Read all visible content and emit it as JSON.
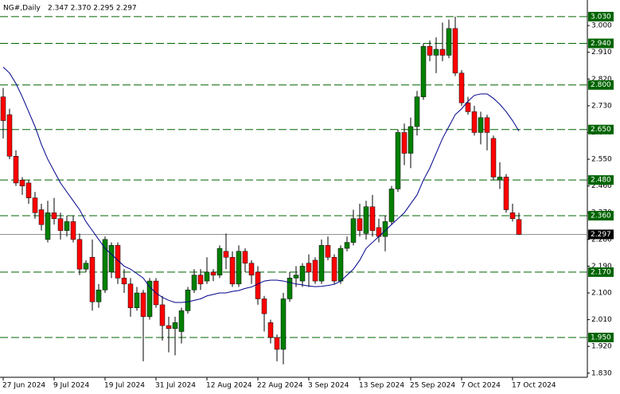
{
  "chart_data": {
    "type": "candlestick",
    "title": "NG#,Daily",
    "ohlc_text": "2.347 2.370 2.295 2.297",
    "categories": [
      "27 Jun 2024",
      null,
      null,
      null,
      null,
      null,
      null,
      null,
      "9 Jul 2024",
      null,
      null,
      null,
      null,
      null,
      null,
      null,
      "19 Jul 2024",
      null,
      null,
      null,
      null,
      null,
      null,
      null,
      "31 Jul 2024",
      null,
      null,
      null,
      null,
      null,
      null,
      null,
      "12 Aug 2024",
      null,
      null,
      null,
      null,
      null,
      null,
      null,
      "22 Aug 2024",
      null,
      null,
      null,
      null,
      null,
      null,
      null,
      "3 Sep 2024",
      null,
      null,
      null,
      null,
      null,
      null,
      null,
      "13 Sep 2024",
      null,
      null,
      null,
      null,
      null,
      null,
      null,
      "25 Sep 2024",
      null,
      null,
      null,
      null,
      null,
      null,
      null,
      "7 Oct 2024",
      null,
      null,
      null,
      null,
      null,
      null,
      null,
      "17 Oct 2024",
      null
    ],
    "open": [
      2.76,
      2.7,
      2.56,
      2.48,
      2.47,
      2.42,
      2.38,
      2.28,
      2.37,
      2.35,
      2.31,
      2.34,
      2.28,
      2.18,
      2.22,
      2.07,
      2.11,
      2.17,
      2.26,
      2.15,
      2.13,
      2.05,
      2.1,
      2.02,
      2.14,
      2.06,
      1.99,
      1.98,
      1.97,
      2.04,
      2.11,
      2.16,
      2.14,
      2.17,
      2.16,
      2.24,
      2.22,
      2.13,
      2.24,
      2.2,
      2.17,
      2.08,
      2.0,
      1.95,
      1.91,
      2.08,
      2.15,
      2.14,
      2.2,
      2.21,
      2.14,
      2.26,
      2.22,
      2.14,
      2.25,
      2.27,
      2.35,
      2.3,
      2.39,
      2.32,
      2.29,
      2.34,
      2.45,
      2.64,
      2.57,
      2.66,
      2.76,
      2.93,
      2.9,
      2.92,
      2.9,
      2.99,
      2.84,
      2.74,
      2.71,
      2.64,
      2.69,
      2.62,
      2.48,
      2.49,
      2.37,
      2.347
    ],
    "high": [
      2.79,
      2.72,
      2.58,
      2.49,
      2.48,
      2.44,
      2.4,
      2.41,
      2.42,
      2.37,
      2.36,
      2.36,
      2.3,
      2.21,
      2.28,
      2.13,
      2.29,
      2.27,
      2.27,
      2.18,
      2.15,
      2.12,
      2.11,
      2.15,
      2.15,
      2.09,
      2.02,
      2.02,
      2.05,
      2.12,
      2.18,
      2.18,
      2.22,
      2.18,
      2.26,
      2.3,
      2.24,
      2.26,
      2.25,
      2.21,
      2.19,
      2.09,
      2.01,
      1.96,
      2.1,
      2.17,
      2.19,
      2.2,
      2.23,
      2.22,
      2.28,
      2.29,
      2.23,
      2.26,
      2.29,
      2.38,
      2.4,
      2.41,
      2.43,
      2.35,
      2.36,
      2.46,
      2.65,
      2.67,
      2.69,
      2.78,
      2.94,
      2.95,
      2.96,
      3.01,
      3.02,
      3.03,
      2.85,
      2.76,
      2.73,
      2.71,
      2.7,
      2.63,
      2.54,
      2.5,
      2.4,
      2.37
    ],
    "low": [
      2.62,
      2.55,
      2.46,
      2.43,
      2.4,
      2.35,
      2.31,
      2.27,
      2.33,
      2.28,
      2.29,
      2.27,
      2.16,
      2.17,
      2.04,
      2.05,
      2.1,
      2.15,
      2.13,
      2.1,
      2.02,
      2.04,
      1.87,
      2.01,
      2.05,
      1.94,
      1.9,
      1.89,
      1.93,
      2.03,
      2.1,
      2.11,
      2.13,
      2.14,
      2.15,
      2.18,
      2.12,
      2.12,
      2.17,
      2.13,
      2.06,
      1.97,
      1.93,
      1.87,
      1.86,
      2.07,
      2.12,
      2.12,
      2.12,
      2.13,
      2.13,
      2.21,
      2.13,
      2.13,
      2.24,
      2.26,
      2.29,
      2.28,
      2.29,
      2.27,
      2.24,
      2.33,
      2.44,
      2.53,
      2.52,
      2.63,
      2.75,
      2.88,
      2.84,
      2.88,
      2.89,
      2.83,
      2.73,
      2.7,
      2.63,
      2.6,
      2.58,
      2.48,
      2.45,
      2.37,
      2.34,
      2.295
    ],
    "close": [
      2.68,
      2.56,
      2.47,
      2.46,
      2.42,
      2.37,
      2.33,
      2.37,
      2.35,
      2.31,
      2.34,
      2.28,
      2.18,
      2.2,
      2.07,
      2.11,
      2.28,
      2.26,
      2.15,
      2.13,
      2.05,
      2.1,
      2.02,
      2.14,
      2.06,
      1.99,
      1.98,
      2.0,
      2.04,
      2.11,
      2.16,
      2.13,
      2.17,
      2.16,
      2.25,
      2.22,
      2.13,
      2.24,
      2.2,
      2.16,
      2.08,
      2.03,
      1.95,
      1.91,
      2.08,
      2.15,
      2.16,
      2.19,
      2.17,
      2.14,
      2.26,
      2.22,
      2.14,
      2.25,
      2.27,
      2.35,
      2.31,
      2.39,
      2.31,
      2.29,
      2.34,
      2.45,
      2.64,
      2.57,
      2.66,
      2.76,
      2.93,
      2.9,
      2.92,
      2.9,
      2.99,
      2.84,
      2.74,
      2.71,
      2.64,
      2.69,
      2.64,
      2.49,
      2.49,
      2.38,
      2.35,
      2.297
    ],
    "up_color": "#008000",
    "down_color": "#ff0000",
    "moving_average": {
      "color": "#00008b",
      "values": [
        2.86,
        2.84,
        2.805,
        2.76,
        2.71,
        2.66,
        2.6,
        2.55,
        2.51,
        2.47,
        2.44,
        2.41,
        2.38,
        2.34,
        2.31,
        2.28,
        2.25,
        2.23,
        2.21,
        2.19,
        2.18,
        2.165,
        2.15,
        2.12,
        2.1,
        2.085,
        2.075,
        2.068,
        2.068,
        2.07,
        2.075,
        2.08,
        2.09,
        2.095,
        2.1,
        2.1,
        2.105,
        2.108,
        2.115,
        2.12,
        2.13,
        2.14,
        2.143,
        2.143,
        2.14,
        2.135,
        2.13,
        2.127,
        2.123,
        2.121,
        2.122,
        2.125,
        2.129,
        2.14,
        2.16,
        2.18,
        2.21,
        2.25,
        2.27,
        2.29,
        2.31,
        2.33,
        2.35,
        2.37,
        2.4,
        2.43,
        2.48,
        2.52,
        2.57,
        2.62,
        2.66,
        2.7,
        2.72,
        2.745,
        2.765,
        2.77,
        2.77,
        2.755,
        2.735,
        2.71,
        2.68,
        2.645
      ]
    },
    "ylim": [
      1.816,
      3.086
    ],
    "yticks": [
      {
        "value": 3.0,
        "label": "3.000"
      },
      {
        "value": 2.91,
        "label": "2.910"
      },
      {
        "value": 2.82,
        "label": "2.820"
      },
      {
        "value": 2.73,
        "label": "2.730"
      },
      {
        "value": 2.64,
        "label": "2.640"
      },
      {
        "value": 2.55,
        "label": "2.550"
      },
      {
        "value": 2.46,
        "label": "2.460"
      },
      {
        "value": 2.37,
        "label": "2.370"
      },
      {
        "value": 2.28,
        "label": "2.280"
      },
      {
        "value": 2.19,
        "label": "2.190"
      },
      {
        "value": 2.1,
        "label": "2.100"
      },
      {
        "value": 2.01,
        "label": "2.010"
      },
      {
        "value": 1.92,
        "label": "1.920"
      },
      {
        "value": 1.83,
        "label": "1.830"
      }
    ],
    "levels": [
      {
        "value": 3.03,
        "label": "3.030"
      },
      {
        "value": 2.94,
        "label": "2.940"
      },
      {
        "value": 2.8,
        "label": "2.800"
      },
      {
        "value": 2.65,
        "label": "2.650"
      },
      {
        "value": 2.48,
        "label": "2.480"
      },
      {
        "value": 2.36,
        "label": "2.360"
      },
      {
        "value": 2.17,
        "label": "2.170"
      },
      {
        "value": 1.95,
        "label": "1.950"
      }
    ],
    "level_color": "#006400",
    "last_price": {
      "value": 2.297,
      "label": "2.297"
    }
  }
}
